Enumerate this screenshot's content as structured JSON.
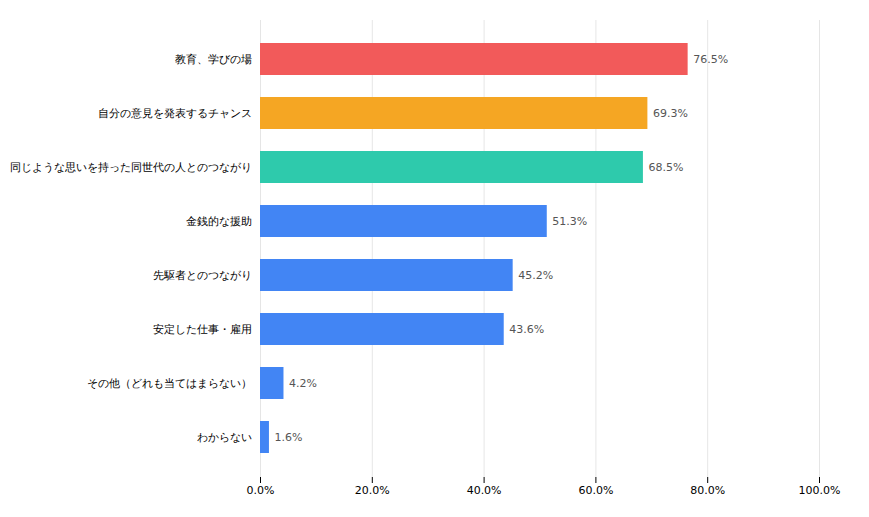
{
  "chart_data": {
    "type": "bar",
    "orientation": "horizontal",
    "categories": [
      "教育、学びの場",
      "自分の意見を発表するチャンス",
      "同じような思いを持った同世代の人とのつながり",
      "金銭的な援助",
      "先駆者とのつながり",
      "安定した仕事・雇用",
      "その他（どれも当てはまらない）",
      "わからない"
    ],
    "values": [
      76.5,
      69.3,
      68.5,
      51.3,
      45.2,
      43.6,
      4.2,
      1.6
    ],
    "value_labels": [
      "76.5%",
      "69.3%",
      "68.5%",
      "51.3%",
      "45.2%",
      "43.6%",
      "4.2%",
      "1.6%"
    ],
    "data_labels": true,
    "colors": [
      "#f25a5a",
      "#f5a623",
      "#2ecaac",
      "#4285f4",
      "#4285f4",
      "#4285f4",
      "#4285f4",
      "#4285f4"
    ],
    "xlim": [
      0,
      100
    ],
    "xticks": [
      {
        "value": 0,
        "label": "0.0%"
      },
      {
        "value": 20,
        "label": "20.0%"
      },
      {
        "value": 40,
        "label": "40.0%"
      },
      {
        "value": 60,
        "label": "60.0%"
      },
      {
        "value": 80,
        "label": "80.0%"
      },
      {
        "value": 100,
        "label": "100.0%"
      }
    ],
    "grid": true
  }
}
